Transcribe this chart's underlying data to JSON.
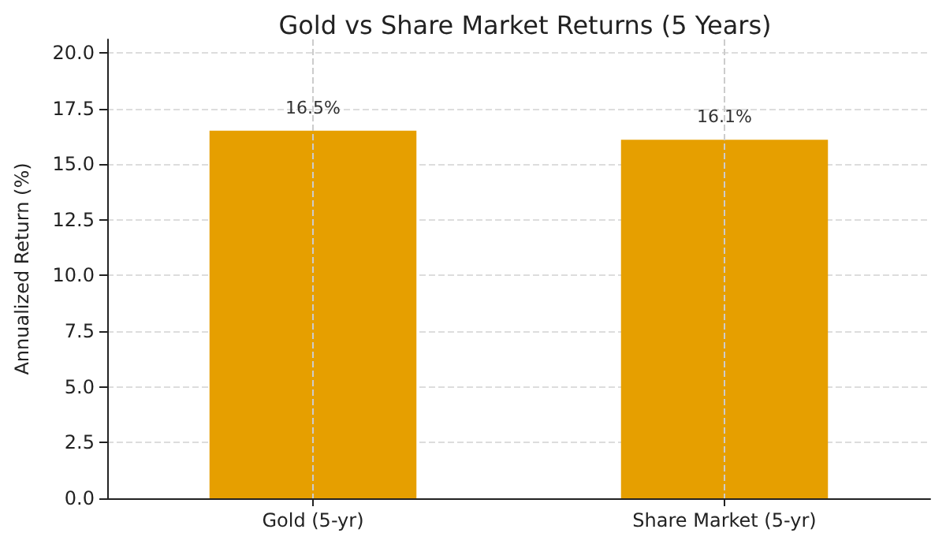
{
  "chart_data": {
    "type": "bar",
    "title": "Gold vs Share Market Returns (5 Years)",
    "ylabel": "Annualized Return (%)",
    "categories": [
      "Gold (5-yr)",
      "Share Market (5-yr)"
    ],
    "values": [
      16.5,
      16.1
    ],
    "color": "#e69f00",
    "value_labels": [
      "16.5%",
      "16.1%"
    ],
    "ylim": [
      0,
      20.6
    ],
    "yticks": [
      {
        "value": 0,
        "label": "0.0"
      },
      2.5,
      {
        "value": 5,
        "label": "5.0"
      },
      7.5,
      {
        "value": 10,
        "label": "10.0"
      },
      12.5,
      {
        "value": 15,
        "label": "15.0"
      },
      17.5,
      {
        "value": 20,
        "label": "20.0"
      }
    ],
    "grid": true
  }
}
